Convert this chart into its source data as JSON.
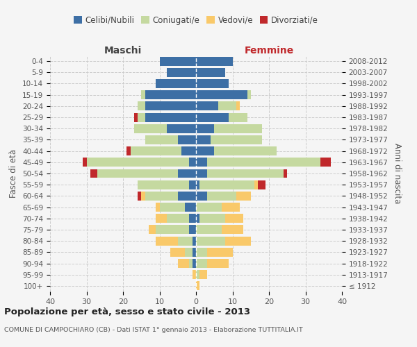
{
  "age_groups": [
    "100+",
    "95-99",
    "90-94",
    "85-89",
    "80-84",
    "75-79",
    "70-74",
    "65-69",
    "60-64",
    "55-59",
    "50-54",
    "45-49",
    "40-44",
    "35-39",
    "30-34",
    "25-29",
    "20-24",
    "15-19",
    "10-14",
    "5-9",
    "0-4"
  ],
  "birth_years": [
    "≤ 1912",
    "1913-1917",
    "1918-1922",
    "1923-1927",
    "1928-1932",
    "1933-1937",
    "1938-1942",
    "1943-1947",
    "1948-1952",
    "1953-1957",
    "1958-1962",
    "1963-1967",
    "1968-1972",
    "1973-1977",
    "1978-1982",
    "1983-1987",
    "1988-1992",
    "1993-1997",
    "1998-2002",
    "2003-2007",
    "2008-2012"
  ],
  "colors": {
    "celibe": "#3d6fa5",
    "coniugato": "#c5d9a0",
    "vedovo": "#f9c96a",
    "divorziato": "#c0282b"
  },
  "maschi": {
    "celibe": [
      0,
      0,
      1,
      1,
      1,
      2,
      2,
      3,
      5,
      2,
      5,
      2,
      4,
      5,
      8,
      14,
      14,
      14,
      11,
      8,
      10
    ],
    "coniugato": [
      0,
      0,
      1,
      2,
      4,
      9,
      6,
      7,
      9,
      14,
      22,
      28,
      14,
      9,
      9,
      2,
      2,
      1,
      0,
      0,
      0
    ],
    "vedovo": [
      0,
      1,
      3,
      4,
      6,
      2,
      3,
      1,
      1,
      0,
      0,
      0,
      0,
      0,
      0,
      0,
      0,
      0,
      0,
      0,
      0
    ],
    "divorziato": [
      0,
      0,
      0,
      0,
      0,
      0,
      0,
      0,
      1,
      0,
      2,
      1,
      1,
      0,
      0,
      1,
      0,
      0,
      0,
      0,
      0
    ]
  },
  "femmine": {
    "celibe": [
      0,
      0,
      0,
      0,
      0,
      0,
      1,
      0,
      3,
      1,
      3,
      3,
      5,
      4,
      5,
      9,
      6,
      14,
      9,
      8,
      10
    ],
    "coniugato": [
      0,
      1,
      3,
      3,
      8,
      7,
      7,
      7,
      8,
      15,
      21,
      31,
      17,
      14,
      13,
      5,
      5,
      1,
      0,
      0,
      0
    ],
    "vedovo": [
      1,
      2,
      6,
      7,
      7,
      6,
      5,
      5,
      4,
      1,
      0,
      0,
      0,
      0,
      0,
      0,
      1,
      0,
      0,
      0,
      0
    ],
    "divorziato": [
      0,
      0,
      0,
      0,
      0,
      0,
      0,
      0,
      0,
      2,
      1,
      3,
      0,
      0,
      0,
      0,
      0,
      0,
      0,
      0,
      0
    ]
  },
  "label_maschi": "Maschi",
  "label_femmine": "Femmine",
  "label_maschi_color": "#444444",
  "label_femmine_color": "#c0282b",
  "ylabel_left": "Fasce di età",
  "ylabel_right": "Anni di nascita",
  "xlim": 40,
  "title": "Popolazione per età, sesso e stato civile - 2013",
  "subtitle": "COMUNE DI CAMPOCHIARO (CB) - Dati ISTAT 1° gennaio 2013 - Elaborazione TUTTITALIA.IT",
  "legend_labels": [
    "Celibi/Nubili",
    "Coniugati/e",
    "Vedovi/e",
    "Divorziati/e"
  ],
  "bg_color": "#f5f5f5"
}
